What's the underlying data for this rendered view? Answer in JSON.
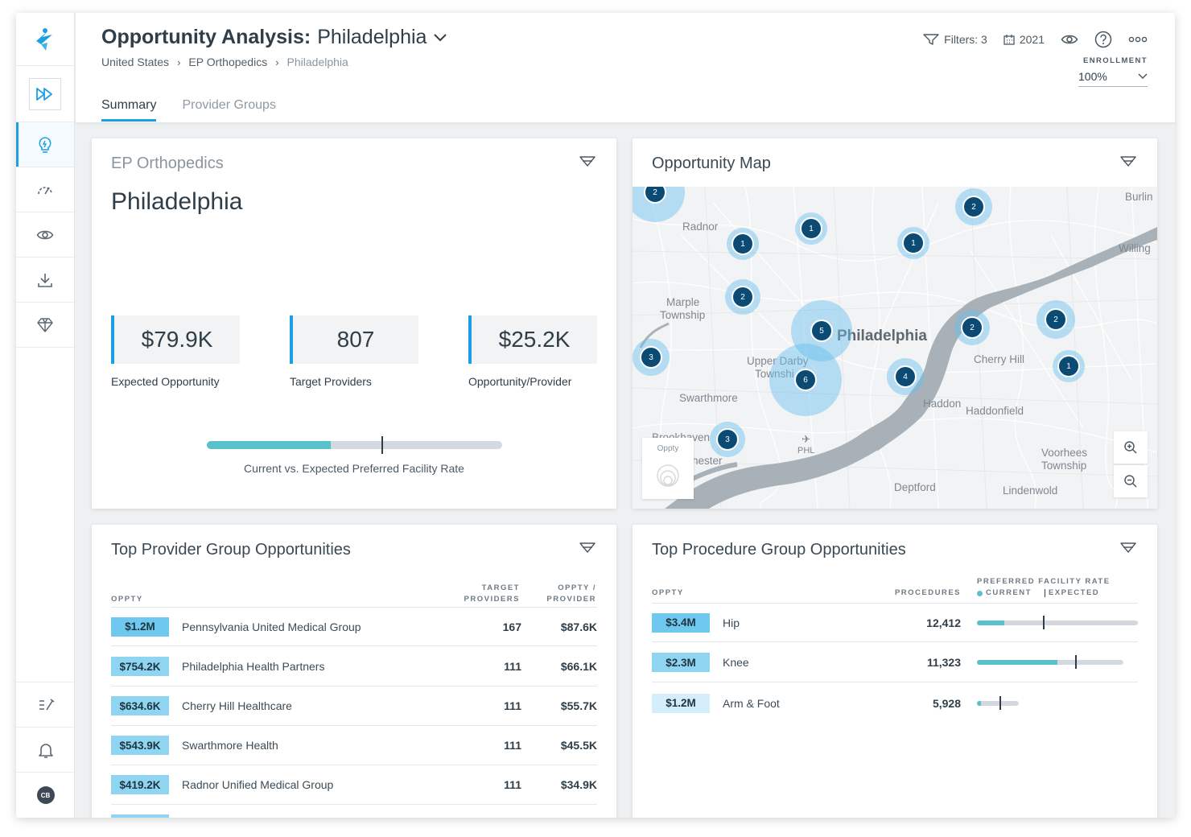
{
  "header": {
    "title_bold": "Opportunity Analysis:",
    "title_city": "Philadelphia",
    "breadcrumb": [
      "United States",
      "EP Orthopedics",
      "Philadelphia"
    ],
    "filters": "Filters: 3",
    "year": "2021",
    "enrollment_label": "ENROLLMENT",
    "enrollment_value": "100%"
  },
  "tabs": [
    "Summary",
    "Provider Groups"
  ],
  "sidebar": {
    "user_initials": "CB"
  },
  "summary": {
    "subtitle": "EP Orthopedics",
    "city": "Philadelphia",
    "kpis": [
      {
        "value": "$79.9K",
        "label": "Expected Opportunity"
      },
      {
        "value": "807",
        "label": "Target Providers"
      },
      {
        "value": "$25.2K",
        "label": "Opportunity/Provider"
      }
    ],
    "rate_label": "Current vs. Expected Preferred Facility Rate",
    "rate_current": 0.42,
    "rate_expected": 0.59
  },
  "map": {
    "title": "Opportunity Map",
    "legend_label": "Oppty",
    "places": {
      "radnor": "Radnor",
      "burlington": "Burlin",
      "willingboro": "Willing",
      "marple": "Marple",
      "township": "Township",
      "philadelphia": "Philadelphia",
      "upper_darby": "Upper Darby",
      "townshi": "Townshi",
      "cherry_hill": "Cherry Hill",
      "swarthmore": "Swarthmore",
      "haddon": "Haddon",
      "haddonfield": "Haddonfield",
      "brookhaven": "Brookhaven",
      "chester": "hester",
      "phl": "PHL",
      "voorhees": "Voorhees",
      "deptford": "Deptford",
      "lindenwold": "Lindenwold"
    },
    "clusters": [
      {
        "count": "2"
      },
      {
        "count": "1"
      },
      {
        "count": "1"
      },
      {
        "count": "1"
      },
      {
        "count": "2"
      },
      {
        "count": "2"
      },
      {
        "count": "5"
      },
      {
        "count": "3"
      },
      {
        "count": "6"
      },
      {
        "count": "4"
      },
      {
        "count": "2"
      },
      {
        "count": "2"
      },
      {
        "count": "1"
      },
      {
        "count": "3"
      }
    ]
  },
  "provider_groups": {
    "title": "Top Provider Group Opportunities",
    "col_oppty": "OPPTY",
    "col_target_1": "TARGET",
    "col_target_2": "PROVIDERS",
    "col_per_1": "OPPTY /",
    "col_per_2": "PROVIDER",
    "rows": [
      {
        "oppty": "$1.2M",
        "name": "Pennsylvania United Medical Group",
        "providers": "167",
        "per_provider": "$87.6K"
      },
      {
        "oppty": "$754.2K",
        "name": "Philadelphia Health Partners",
        "providers": "111",
        "per_provider": "$66.1K"
      },
      {
        "oppty": "$634.6K",
        "name": "Cherry Hill Healthcare",
        "providers": "111",
        "per_provider": "$55.7K"
      },
      {
        "oppty": "$543.9K",
        "name": "Swarthmore Health",
        "providers": "111",
        "per_provider": "$45.5K"
      },
      {
        "oppty": "$419.2K",
        "name": "Radnor Unified Medical Group",
        "providers": "111",
        "per_provider": "$34.9K"
      }
    ]
  },
  "procedure_groups": {
    "title": "Top Procedure Group Opportunities",
    "col_oppty": "OPPTY",
    "col_procedures": "PROCEDURES",
    "col_rate": "PREFERRED FACILITY RATE",
    "legend_current": "CURRENT",
    "legend_expected": "EXPECTED",
    "rows": [
      {
        "oppty": "$3.4M",
        "name": "Hip",
        "procedures": "12,412",
        "bar_length": 1.0,
        "current": 0.17,
        "expected": 0.41
      },
      {
        "oppty": "$2.3M",
        "name": "Knee",
        "procedures": "11,323",
        "bar_length": 0.91,
        "current": 0.55,
        "expected": 0.67
      },
      {
        "oppty": "$1.2M",
        "name": "Arm & Foot",
        "procedures": "5,928",
        "bar_length": 0.26,
        "current": 0.1,
        "expected": 0.54
      }
    ]
  },
  "colors": {
    "accent": "#1aa0e3",
    "badge_strong": "#6fc9ee",
    "badge_mid": "#8fd5f2",
    "badge_light": "#d4eefa",
    "rate_current": "#58c1cc",
    "cluster": "#0b4b73"
  }
}
